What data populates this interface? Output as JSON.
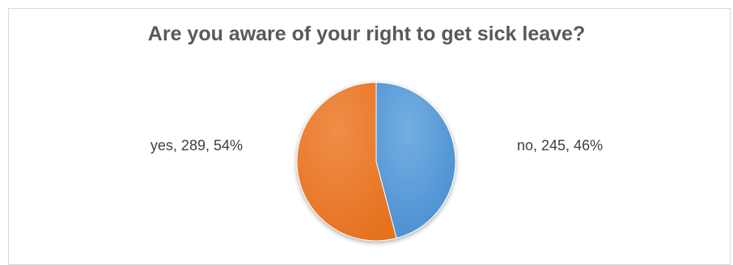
{
  "chart_data": {
    "type": "pie",
    "title": "Are you aware of your right to get sick leave?",
    "categories": [
      "no",
      "yes"
    ],
    "values": [
      245,
      289
    ],
    "percentages": [
      46,
      54
    ],
    "colors": [
      "#5b9bd5",
      "#ed7d31"
    ],
    "data_labels": [
      "no, 245, 46%",
      "yes, 289, 54%"
    ],
    "legend": "none"
  }
}
